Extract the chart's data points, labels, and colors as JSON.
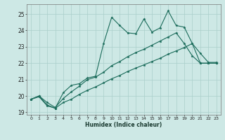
{
  "xlabel": "Humidex (Indice chaleur)",
  "background_color": "#cde8e5",
  "grid_color": "#aacfcb",
  "line_color": "#1a6b5a",
  "xlim": [
    -0.5,
    23.5
  ],
  "ylim": [
    18.85,
    25.6
  ],
  "yticks": [
    19,
    20,
    21,
    22,
    23,
    24,
    25
  ],
  "xticks": [
    0,
    1,
    2,
    3,
    4,
    5,
    6,
    7,
    8,
    9,
    10,
    11,
    12,
    13,
    14,
    15,
    16,
    17,
    18,
    19,
    20,
    21,
    22,
    23
  ],
  "series1_x": [
    0,
    1,
    2,
    3,
    4,
    5,
    6,
    7,
    8,
    9,
    10,
    11,
    12,
    13,
    14,
    15,
    16,
    17,
    18,
    19,
    20,
    21,
    22,
    23
  ],
  "series1_y": [
    19.8,
    20.0,
    19.45,
    19.25,
    20.2,
    20.65,
    20.75,
    21.1,
    21.2,
    23.2,
    24.8,
    24.3,
    23.85,
    23.8,
    24.7,
    23.9,
    24.15,
    25.2,
    24.3,
    24.2,
    23.2,
    22.6,
    22.05,
    22.05
  ],
  "series2_x": [
    0,
    1,
    2,
    3,
    4,
    5,
    6,
    7,
    8,
    9,
    10,
    11,
    12,
    13,
    14,
    15,
    16,
    17,
    18,
    19,
    20,
    21,
    22,
    23
  ],
  "series2_y": [
    19.8,
    20.0,
    19.6,
    19.3,
    19.85,
    20.25,
    20.6,
    21.0,
    21.15,
    21.45,
    21.85,
    22.1,
    22.4,
    22.65,
    22.85,
    23.1,
    23.35,
    23.6,
    23.85,
    23.2,
    22.45,
    22.0,
    22.0,
    22.0
  ],
  "series3_x": [
    0,
    1,
    2,
    3,
    4,
    5,
    6,
    7,
    8,
    9,
    10,
    11,
    12,
    13,
    14,
    15,
    16,
    17,
    18,
    19,
    20,
    21,
    22,
    23
  ],
  "series3_y": [
    19.8,
    19.95,
    19.4,
    19.25,
    19.6,
    19.8,
    20.1,
    20.35,
    20.55,
    20.8,
    21.05,
    21.25,
    21.5,
    21.7,
    21.9,
    22.1,
    22.3,
    22.55,
    22.75,
    22.95,
    23.2,
    22.0,
    22.0,
    22.0
  ]
}
